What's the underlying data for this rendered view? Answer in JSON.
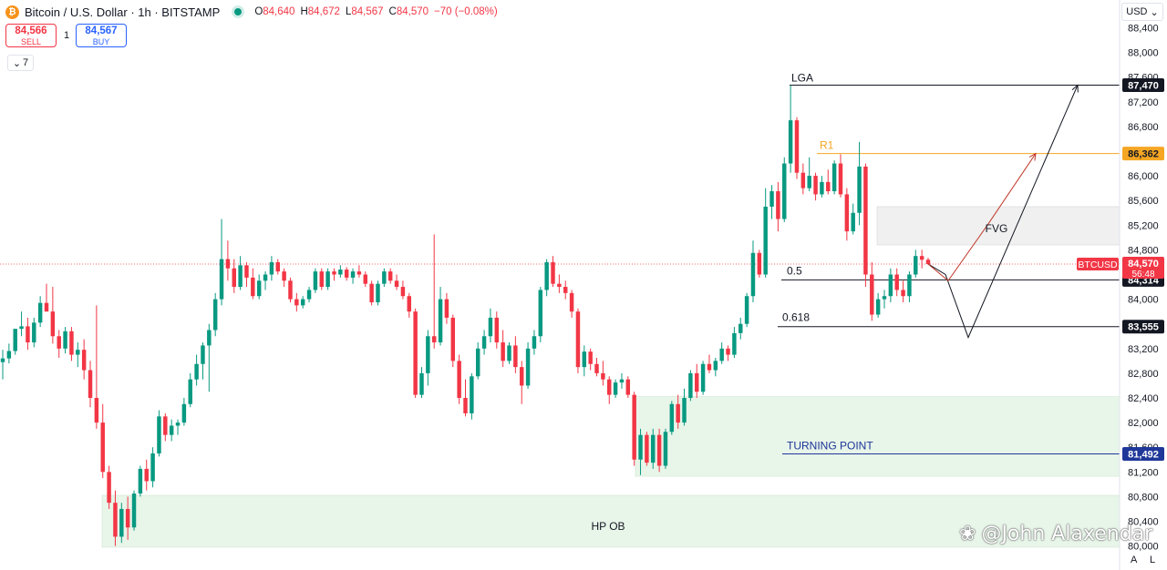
{
  "header": {
    "coin_symbol": "₿",
    "title": "Bitcoin / U.S. Dollar · 1h · BITSTAMP",
    "open_label": "O",
    "open": "84,640",
    "high_label": "H",
    "high": "84,672",
    "low_label": "L",
    "low": "84,567",
    "close_label": "C",
    "close": "84,570",
    "change": "−70 (−0.08%)"
  },
  "trade": {
    "sell_price": "84,566",
    "sell_label": "SELL",
    "spread": "1",
    "buy_price": "84,567",
    "buy_label": "BUY"
  },
  "indicator_toggle": {
    "icon": "chevron-down-icon",
    "count": "7"
  },
  "currency": {
    "label": "USD",
    "icon": "chevron-down-icon"
  },
  "watermark": {
    "icon": "bird-logo-icon",
    "text": "@John Alaxendar"
  },
  "bottom_buttons": {
    "auto": "A",
    "log": "L"
  },
  "colors": {
    "up": "#089981",
    "down": "#f23645",
    "r1": "#f5a623",
    "turning": "#1e3799",
    "zone_green": "#e8f5e9",
    "zone_gray": "#f0f0f0"
  },
  "chart_data": {
    "type": "candlestick",
    "symbol": "BTCUSD",
    "y_axis": {
      "ticks": [
        88400,
        88000,
        87600,
        87200,
        86800,
        86400,
        86000,
        85600,
        85200,
        84800,
        84400,
        84000,
        83600,
        83200,
        82800,
        82400,
        82000,
        81600,
        81200,
        80800,
        80400,
        80000
      ],
      "tick_labels": [
        "88,400",
        "88,000",
        "87,600",
        "87,200",
        "86,800",
        "86,400",
        "86,000",
        "85,600",
        "85,200",
        "84,800",
        "84,400",
        "84,000",
        "83,600",
        "83,200",
        "82,800",
        "82,400",
        "82,000",
        "81,600",
        "81,200",
        "80,800",
        "80,400",
        "80,000"
      ],
      "range": [
        79950,
        88500
      ]
    },
    "levels": [
      {
        "name": "LGA",
        "price": 87470,
        "label": "87,470",
        "color": "#131722"
      },
      {
        "name": "R1",
        "price": 86362,
        "label": "86,362",
        "color": "#f5a623"
      },
      {
        "name": "0.5",
        "price": 84314,
        "label": "84,314",
        "color": "#131722"
      },
      {
        "name": "0.618",
        "price": 83555,
        "label": "83,555",
        "color": "#131722"
      },
      {
        "name": "TURNING POINT",
        "price": 81492,
        "label": "81,492",
        "color": "#1e3799"
      }
    ],
    "last_price": {
      "symbol": "BTCUSD",
      "price": 84570,
      "label": "84,570",
      "countdown": "56:48"
    },
    "zones": [
      {
        "name": "HP OB",
        "top": 80820,
        "bottom": 79980
      },
      {
        "name": "",
        "top": 82420,
        "bottom": 81130
      },
      {
        "name": "FVG",
        "top": 85500,
        "bottom": 84880
      }
    ],
    "candles": [
      {
        "o": 82980,
        "h": 83180,
        "l": 82700,
        "c": 83040
      },
      {
        "o": 83040,
        "h": 83280,
        "l": 82960,
        "c": 83160
      },
      {
        "o": 83160,
        "h": 83500,
        "l": 83100,
        "c": 83520
      },
      {
        "o": 83520,
        "h": 83800,
        "l": 83400,
        "c": 83560
      },
      {
        "o": 83560,
        "h": 83700,
        "l": 83180,
        "c": 83300
      },
      {
        "o": 83300,
        "h": 83700,
        "l": 83220,
        "c": 83620
      },
      {
        "o": 83620,
        "h": 84050,
        "l": 83550,
        "c": 83940
      },
      {
        "o": 83940,
        "h": 84250,
        "l": 83800,
        "c": 83800
      },
      {
        "o": 83800,
        "h": 84200,
        "l": 83280,
        "c": 83400
      },
      {
        "o": 83400,
        "h": 83500,
        "l": 83050,
        "c": 83200
      },
      {
        "o": 83200,
        "h": 83550,
        "l": 83120,
        "c": 83480
      },
      {
        "o": 83480,
        "h": 83550,
        "l": 83000,
        "c": 83100
      },
      {
        "o": 83100,
        "h": 83300,
        "l": 82900,
        "c": 83180
      },
      {
        "o": 83180,
        "h": 83350,
        "l": 82700,
        "c": 82850
      },
      {
        "o": 82850,
        "h": 83000,
        "l": 82250,
        "c": 82400
      },
      {
        "o": 82400,
        "h": 83900,
        "l": 81900,
        "c": 82000
      },
      {
        "o": 82000,
        "h": 82300,
        "l": 81100,
        "c": 81200
      },
      {
        "o": 81200,
        "h": 81300,
        "l": 80600,
        "c": 80700
      },
      {
        "o": 80700,
        "h": 80900,
        "l": 80000,
        "c": 80150
      },
      {
        "o": 80150,
        "h": 80700,
        "l": 80050,
        "c": 80600
      },
      {
        "o": 80600,
        "h": 80800,
        "l": 80100,
        "c": 80300
      },
      {
        "o": 80300,
        "h": 80900,
        "l": 80250,
        "c": 80850
      },
      {
        "o": 80850,
        "h": 81300,
        "l": 80800,
        "c": 81250
      },
      {
        "o": 81250,
        "h": 81400,
        "l": 80900,
        "c": 81050
      },
      {
        "o": 81050,
        "h": 81600,
        "l": 80950,
        "c": 81500
      },
      {
        "o": 81500,
        "h": 82200,
        "l": 81450,
        "c": 82100
      },
      {
        "o": 82100,
        "h": 82150,
        "l": 81700,
        "c": 81800
      },
      {
        "o": 81800,
        "h": 82050,
        "l": 81700,
        "c": 81950
      },
      {
        "o": 81950,
        "h": 82050,
        "l": 81800,
        "c": 82000
      },
      {
        "o": 82000,
        "h": 82400,
        "l": 81950,
        "c": 82300
      },
      {
        "o": 82300,
        "h": 82800,
        "l": 82250,
        "c": 82700
      },
      {
        "o": 82700,
        "h": 83100,
        "l": 82600,
        "c": 82950
      },
      {
        "o": 82950,
        "h": 83300,
        "l": 82700,
        "c": 83250
      },
      {
        "o": 83250,
        "h": 83600,
        "l": 82500,
        "c": 83500
      },
      {
        "o": 83500,
        "h": 84100,
        "l": 83400,
        "c": 84000
      },
      {
        "o": 84000,
        "h": 85300,
        "l": 83900,
        "c": 84650
      },
      {
        "o": 84650,
        "h": 84950,
        "l": 84300,
        "c": 84500
      },
      {
        "o": 84500,
        "h": 84650,
        "l": 84100,
        "c": 84200
      },
      {
        "o": 84200,
        "h": 84700,
        "l": 84150,
        "c": 84550
      },
      {
        "o": 84550,
        "h": 84600,
        "l": 84200,
        "c": 84350
      },
      {
        "o": 84350,
        "h": 84500,
        "l": 84000,
        "c": 84050
      },
      {
        "o": 84050,
        "h": 84400,
        "l": 84000,
        "c": 84300
      },
      {
        "o": 84300,
        "h": 84450,
        "l": 84150,
        "c": 84400
      },
      {
        "o": 84400,
        "h": 84700,
        "l": 84300,
        "c": 84600
      },
      {
        "o": 84600,
        "h": 84650,
        "l": 84400,
        "c": 84450
      },
      {
        "o": 84450,
        "h": 84500,
        "l": 84200,
        "c": 84300
      },
      {
        "o": 84300,
        "h": 84350,
        "l": 83950,
        "c": 84000
      },
      {
        "o": 84000,
        "h": 84100,
        "l": 83800,
        "c": 83900
      },
      {
        "o": 83900,
        "h": 84050,
        "l": 83850,
        "c": 84000
      },
      {
        "o": 84000,
        "h": 84200,
        "l": 83950,
        "c": 84150
      },
      {
        "o": 84150,
        "h": 84500,
        "l": 84100,
        "c": 84450
      },
      {
        "o": 84450,
        "h": 84500,
        "l": 84150,
        "c": 84200
      },
      {
        "o": 84200,
        "h": 84500,
        "l": 84150,
        "c": 84450
      },
      {
        "o": 84450,
        "h": 84500,
        "l": 84300,
        "c": 84400
      },
      {
        "o": 84400,
        "h": 84550,
        "l": 84350,
        "c": 84480
      },
      {
        "o": 84480,
        "h": 84520,
        "l": 84300,
        "c": 84350
      },
      {
        "o": 84350,
        "h": 84500,
        "l": 84250,
        "c": 84450
      },
      {
        "o": 84450,
        "h": 84550,
        "l": 84350,
        "c": 84400
      },
      {
        "o": 84400,
        "h": 84450,
        "l": 84200,
        "c": 84250
      },
      {
        "o": 84250,
        "h": 84300,
        "l": 83900,
        "c": 83950
      },
      {
        "o": 83950,
        "h": 84300,
        "l": 83900,
        "c": 84250
      },
      {
        "o": 84250,
        "h": 84500,
        "l": 84200,
        "c": 84450
      },
      {
        "o": 84450,
        "h": 84500,
        "l": 84250,
        "c": 84300
      },
      {
        "o": 84300,
        "h": 84400,
        "l": 84150,
        "c": 84200
      },
      {
        "o": 84200,
        "h": 84300,
        "l": 84000,
        "c": 84050
      },
      {
        "o": 84050,
        "h": 84100,
        "l": 83700,
        "c": 83800
      },
      {
        "o": 83800,
        "h": 83850,
        "l": 82400,
        "c": 82450
      },
      {
        "o": 82450,
        "h": 82900,
        "l": 82400,
        "c": 82800
      },
      {
        "o": 82800,
        "h": 83500,
        "l": 82600,
        "c": 83400
      },
      {
        "o": 83400,
        "h": 85050,
        "l": 83200,
        "c": 83300
      },
      {
        "o": 83300,
        "h": 84200,
        "l": 83250,
        "c": 84000
      },
      {
        "o": 84000,
        "h": 84100,
        "l": 83600,
        "c": 83700
      },
      {
        "o": 83700,
        "h": 83750,
        "l": 82900,
        "c": 83000
      },
      {
        "o": 83000,
        "h": 83100,
        "l": 82300,
        "c": 82400
      },
      {
        "o": 82400,
        "h": 82700,
        "l": 82100,
        "c": 82150
      },
      {
        "o": 82150,
        "h": 82800,
        "l": 82050,
        "c": 82750
      },
      {
        "o": 82750,
        "h": 83300,
        "l": 82700,
        "c": 83200
      },
      {
        "o": 83200,
        "h": 83500,
        "l": 83100,
        "c": 83400
      },
      {
        "o": 83400,
        "h": 83850,
        "l": 83300,
        "c": 83700
      },
      {
        "o": 83700,
        "h": 83800,
        "l": 83200,
        "c": 83300
      },
      {
        "o": 83300,
        "h": 83500,
        "l": 82900,
        "c": 83000
      },
      {
        "o": 83000,
        "h": 83300,
        "l": 82950,
        "c": 83250
      },
      {
        "o": 83250,
        "h": 83400,
        "l": 82800,
        "c": 82900
      },
      {
        "o": 82900,
        "h": 83000,
        "l": 82300,
        "c": 82600
      },
      {
        "o": 82600,
        "h": 83300,
        "l": 82550,
        "c": 83200
      },
      {
        "o": 83200,
        "h": 83500,
        "l": 83100,
        "c": 83400
      },
      {
        "o": 83400,
        "h": 84200,
        "l": 83300,
        "c": 84150
      },
      {
        "o": 84150,
        "h": 84650,
        "l": 84050,
        "c": 84600
      },
      {
        "o": 84600,
        "h": 84700,
        "l": 84200,
        "c": 84250
      },
      {
        "o": 84250,
        "h": 84400,
        "l": 84100,
        "c": 84200
      },
      {
        "o": 84200,
        "h": 84300,
        "l": 84000,
        "c": 84100
      },
      {
        "o": 84100,
        "h": 84150,
        "l": 83700,
        "c": 83800
      },
      {
        "o": 83800,
        "h": 83850,
        "l": 82800,
        "c": 82900
      },
      {
        "o": 82900,
        "h": 83250,
        "l": 82750,
        "c": 83150
      },
      {
        "o": 83150,
        "h": 83200,
        "l": 82850,
        "c": 82950
      },
      {
        "o": 82950,
        "h": 83050,
        "l": 82750,
        "c": 82800
      },
      {
        "o": 82800,
        "h": 83000,
        "l": 82600,
        "c": 82700
      },
      {
        "o": 82700,
        "h": 82750,
        "l": 82300,
        "c": 82450
      },
      {
        "o": 82450,
        "h": 82700,
        "l": 82400,
        "c": 82650
      },
      {
        "o": 82650,
        "h": 82800,
        "l": 82550,
        "c": 82700
      },
      {
        "o": 82700,
        "h": 82750,
        "l": 82400,
        "c": 82450
      },
      {
        "o": 82450,
        "h": 82500,
        "l": 81300,
        "c": 81400
      },
      {
        "o": 81400,
        "h": 81900,
        "l": 81150,
        "c": 81800
      },
      {
        "o": 81800,
        "h": 81850,
        "l": 81300,
        "c": 81350
      },
      {
        "o": 81350,
        "h": 81900,
        "l": 81250,
        "c": 81800
      },
      {
        "o": 81800,
        "h": 81900,
        "l": 81200,
        "c": 81300
      },
      {
        "o": 81300,
        "h": 81900,
        "l": 81250,
        "c": 81850
      },
      {
        "o": 81850,
        "h": 82350,
        "l": 81800,
        "c": 82300
      },
      {
        "o": 82300,
        "h": 82450,
        "l": 81900,
        "c": 82000
      },
      {
        "o": 82000,
        "h": 82550,
        "l": 81950,
        "c": 82400
      },
      {
        "o": 82400,
        "h": 82850,
        "l": 82350,
        "c": 82800
      },
      {
        "o": 82800,
        "h": 82950,
        "l": 82400,
        "c": 82500
      },
      {
        "o": 82500,
        "h": 83000,
        "l": 82450,
        "c": 82950
      },
      {
        "o": 82950,
        "h": 83100,
        "l": 82800,
        "c": 82850
      },
      {
        "o": 82850,
        "h": 83050,
        "l": 82750,
        "c": 83000
      },
      {
        "o": 83000,
        "h": 83300,
        "l": 82950,
        "c": 83200
      },
      {
        "o": 83200,
        "h": 83250,
        "l": 83000,
        "c": 83100
      },
      {
        "o": 83100,
        "h": 83550,
        "l": 83050,
        "c": 83450
      },
      {
        "o": 83450,
        "h": 83700,
        "l": 83350,
        "c": 83600
      },
      {
        "o": 83600,
        "h": 84100,
        "l": 83550,
        "c": 84050
      },
      {
        "o": 84050,
        "h": 84950,
        "l": 83950,
        "c": 84750
      },
      {
        "o": 84750,
        "h": 84800,
        "l": 84350,
        "c": 84400
      },
      {
        "o": 84400,
        "h": 85800,
        "l": 84350,
        "c": 85500
      },
      {
        "o": 85500,
        "h": 85850,
        "l": 85300,
        "c": 85750
      },
      {
        "o": 85750,
        "h": 85900,
        "l": 85100,
        "c": 85300
      },
      {
        "o": 85300,
        "h": 86300,
        "l": 85250,
        "c": 86200
      },
      {
        "o": 86200,
        "h": 87470,
        "l": 86050,
        "c": 86900
      },
      {
        "o": 86900,
        "h": 86950,
        "l": 85950,
        "c": 86050
      },
      {
        "o": 86050,
        "h": 86200,
        "l": 85700,
        "c": 85800
      },
      {
        "o": 85800,
        "h": 86300,
        "l": 85750,
        "c": 86000
      },
      {
        "o": 86000,
        "h": 86050,
        "l": 85600,
        "c": 85700
      },
      {
        "o": 85700,
        "h": 86000,
        "l": 85650,
        "c": 85900
      },
      {
        "o": 85900,
        "h": 86100,
        "l": 85700,
        "c": 85750
      },
      {
        "o": 85750,
        "h": 86250,
        "l": 85700,
        "c": 86200
      },
      {
        "o": 86200,
        "h": 86350,
        "l": 85650,
        "c": 85700
      },
      {
        "o": 85700,
        "h": 85800,
        "l": 84950,
        "c": 85100
      },
      {
        "o": 85100,
        "h": 85550,
        "l": 85050,
        "c": 85400
      },
      {
        "o": 85400,
        "h": 86550,
        "l": 85200,
        "c": 86150
      },
      {
        "o": 86150,
        "h": 86200,
        "l": 84200,
        "c": 84400
      },
      {
        "o": 84400,
        "h": 84600,
        "l": 83650,
        "c": 83750
      },
      {
        "o": 83750,
        "h": 84100,
        "l": 83700,
        "c": 84000
      },
      {
        "o": 84000,
        "h": 84150,
        "l": 83850,
        "c": 84050
      },
      {
        "o": 84050,
        "h": 84500,
        "l": 83950,
        "c": 84400
      },
      {
        "o": 84400,
        "h": 84500,
        "l": 84050,
        "c": 84150
      },
      {
        "o": 84150,
        "h": 84300,
        "l": 83950,
        "c": 84050
      },
      {
        "o": 84050,
        "h": 84450,
        "l": 83950,
        "c": 84400
      },
      {
        "o": 84400,
        "h": 84800,
        "l": 84350,
        "c": 84700
      },
      {
        "o": 84700,
        "h": 84800,
        "l": 84500,
        "c": 84640
      },
      {
        "o": 84640,
        "h": 84672,
        "l": 84567,
        "c": 84570
      }
    ],
    "annotations": [
      {
        "text": "LGA",
        "color": "#131722"
      },
      {
        "text": "R1",
        "color": "#f5a623"
      },
      {
        "text": "0.5",
        "color": "#131722"
      },
      {
        "text": "0.618",
        "color": "#131722"
      },
      {
        "text": "FVG",
        "color": "#131722"
      },
      {
        "text": "TURNING POINT",
        "color": "#1e3799"
      },
      {
        "text": "HP OB",
        "color": "#131722"
      }
    ],
    "projection_black": [
      [
        84570,
        84400
      ],
      [
        83600,
        83380
      ],
      [
        84900,
        87470
      ]
    ],
    "projection_red": [
      [
        84570,
        84300
      ],
      [
        85700,
        85200
      ],
      [
        86362,
        86362
      ]
    ],
    "grid": false,
    "legend": "none"
  }
}
